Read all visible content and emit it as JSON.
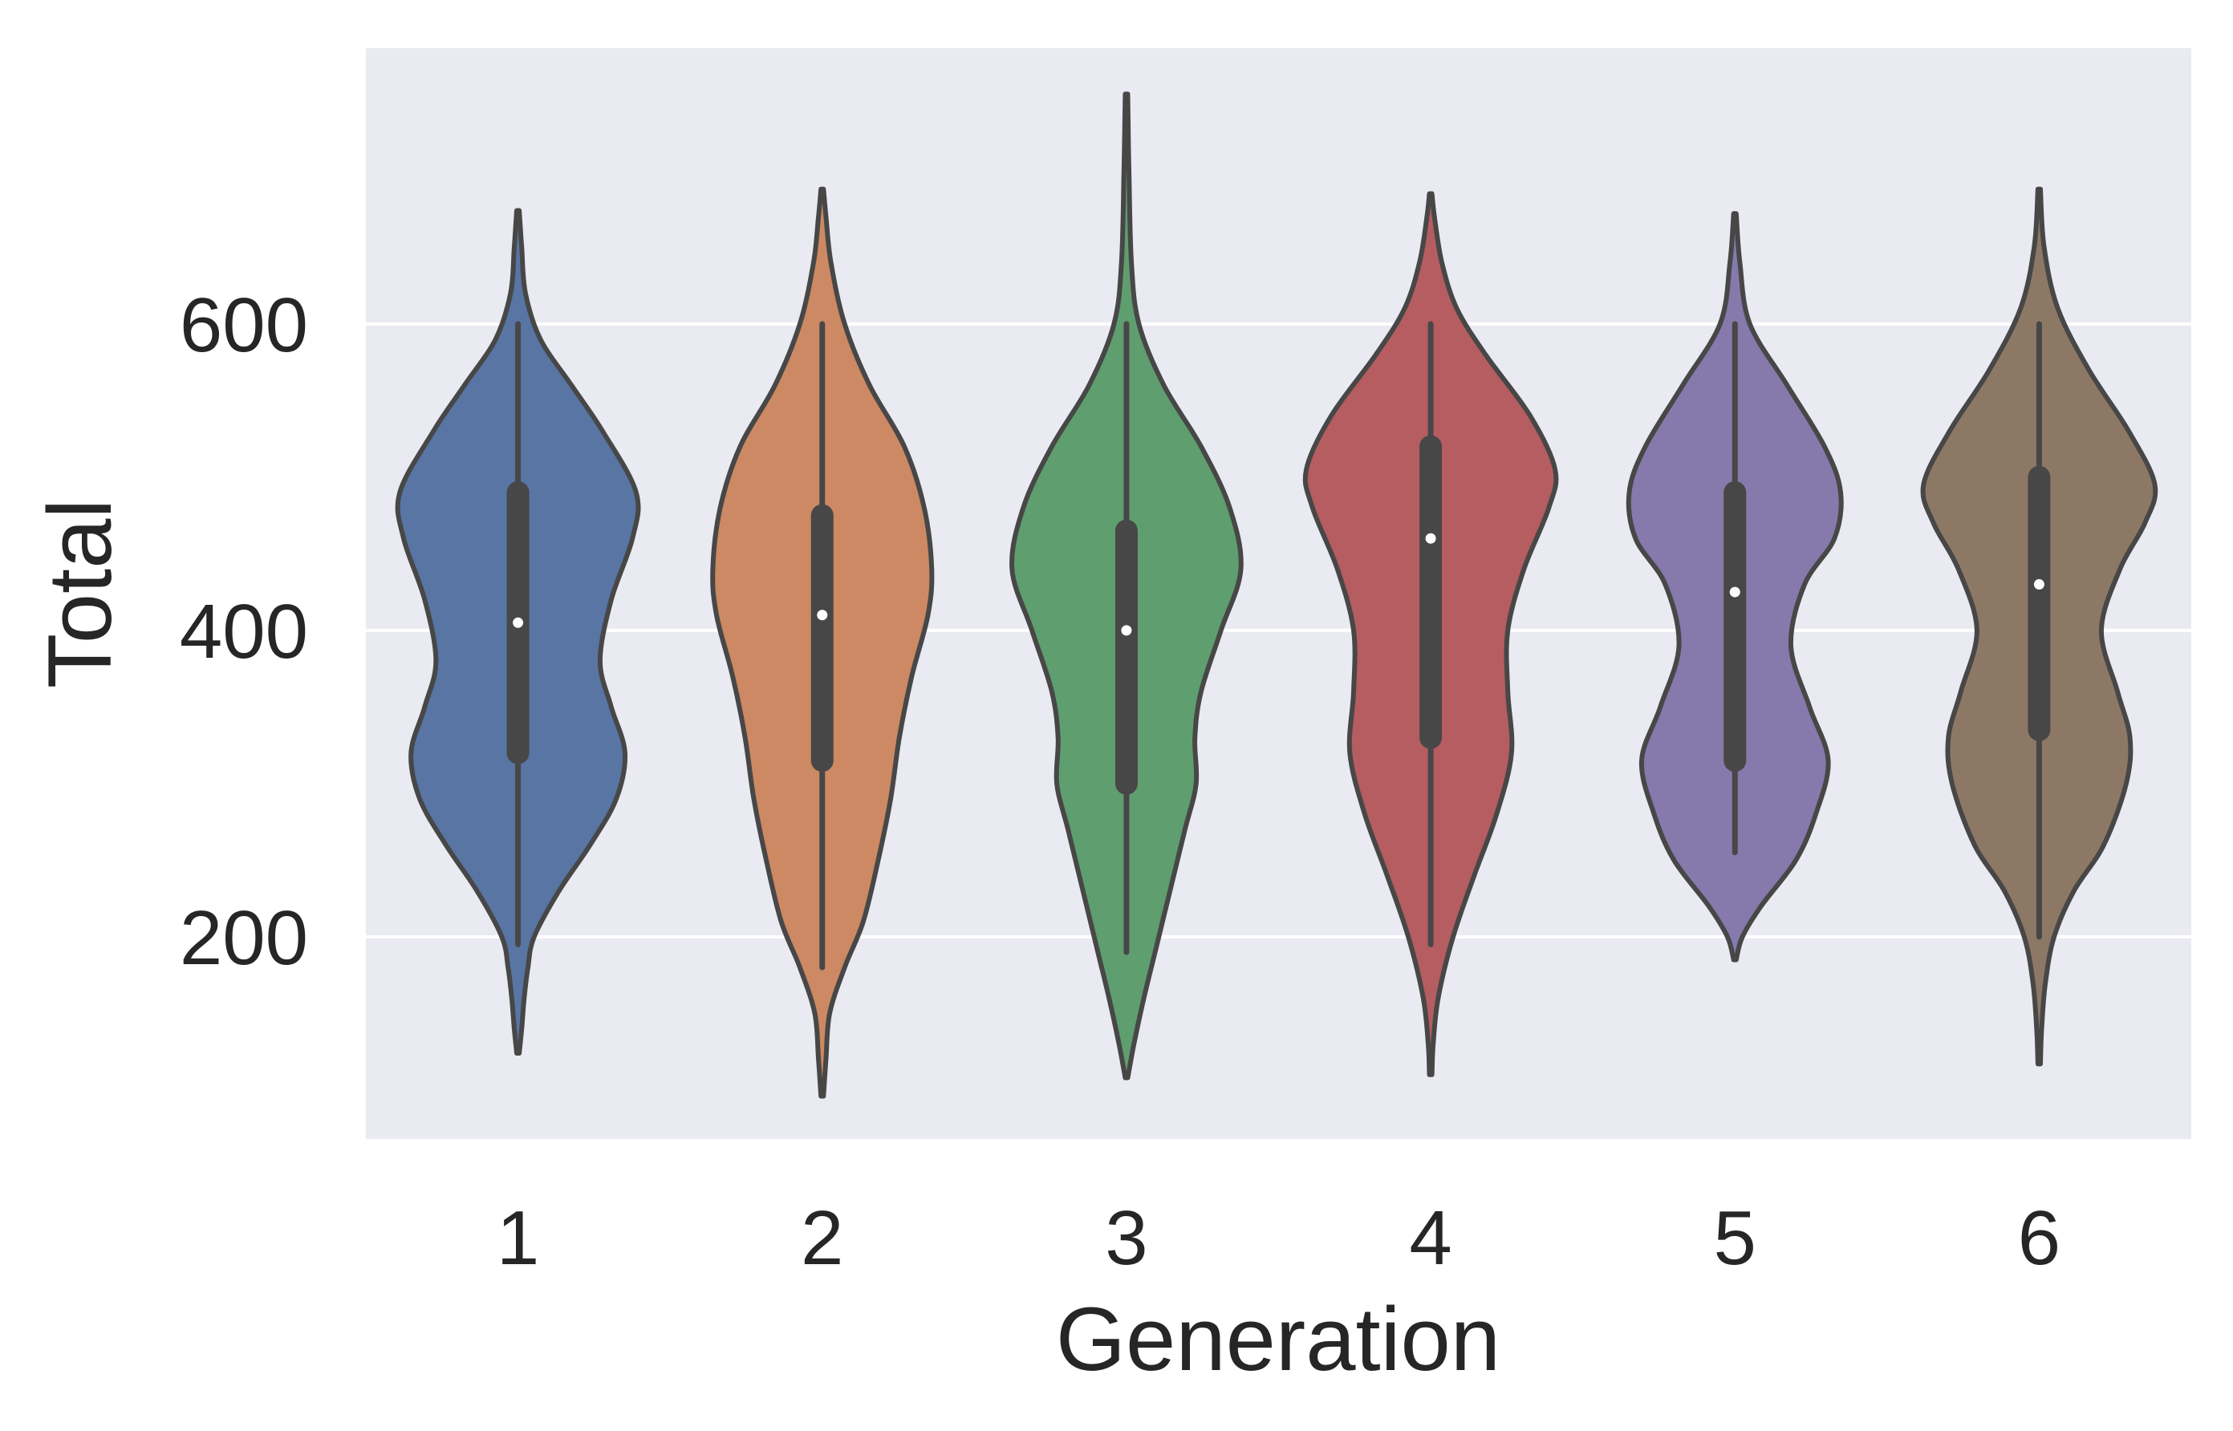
{
  "chart_data": {
    "type": "violin",
    "xlabel": "Generation",
    "ylabel": "Total",
    "categories": [
      "1",
      "2",
      "3",
      "4",
      "5",
      "6"
    ],
    "yticks": [
      200,
      400,
      600
    ],
    "ytick_labels": [
      "200",
      "400",
      "600"
    ],
    "ylim": [
      68,
      780
    ],
    "grid": "horizontal",
    "background": "#eaeaf2",
    "gridline_color": "#ffffff",
    "outline_color": "#474747",
    "colors": [
      "#5875a4",
      "#cc8963",
      "#5f9e6e",
      "#b55d60",
      "#857aab",
      "#8d7866"
    ],
    "violins": [
      {
        "category": "1",
        "min": 195,
        "q1": 320,
        "median": 405,
        "q3": 490,
        "max": 600,
        "kde": [
          [
            124,
            0.01
          ],
          [
            140,
            0.03
          ],
          [
            160,
            0.05
          ],
          [
            180,
            0.08
          ],
          [
            200,
            0.13
          ],
          [
            230,
            0.33
          ],
          [
            260,
            0.58
          ],
          [
            290,
            0.79
          ],
          [
            320,
            0.86
          ],
          [
            350,
            0.75
          ],
          [
            380,
            0.66
          ],
          [
            420,
            0.75
          ],
          [
            460,
            0.92
          ],
          [
            490,
            0.95
          ],
          [
            530,
            0.68
          ],
          [
            560,
            0.43
          ],
          [
            590,
            0.18
          ],
          [
            620,
            0.06
          ],
          [
            650,
            0.03
          ],
          [
            674,
            0.01
          ]
        ]
      },
      {
        "category": "2",
        "min": 180,
        "q1": 315,
        "median": 410,
        "q3": 475,
        "max": 600,
        "kde": [
          [
            96,
            0.01
          ],
          [
            120,
            0.03
          ],
          [
            150,
            0.06
          ],
          [
            180,
            0.18
          ],
          [
            210,
            0.33
          ],
          [
            250,
            0.45
          ],
          [
            290,
            0.55
          ],
          [
            330,
            0.62
          ],
          [
            370,
            0.72
          ],
          [
            410,
            0.85
          ],
          [
            440,
            0.88
          ],
          [
            480,
            0.82
          ],
          [
            520,
            0.66
          ],
          [
            560,
            0.38
          ],
          [
            600,
            0.18
          ],
          [
            640,
            0.07
          ],
          [
            670,
            0.03
          ],
          [
            688,
            0.01
          ]
        ]
      },
      {
        "category": "3",
        "min": 190,
        "q1": 300,
        "median": 400,
        "q3": 465,
        "max": 600,
        "kde": [
          [
            108,
            0.01
          ],
          [
            130,
            0.06
          ],
          [
            160,
            0.14
          ],
          [
            190,
            0.23
          ],
          [
            230,
            0.35
          ],
          [
            270,
            0.47
          ],
          [
            300,
            0.56
          ],
          [
            330,
            0.55
          ],
          [
            360,
            0.6
          ],
          [
            400,
            0.76
          ],
          [
            440,
            0.92
          ],
          [
            480,
            0.83
          ],
          [
            520,
            0.6
          ],
          [
            560,
            0.3
          ],
          [
            600,
            0.1
          ],
          [
            640,
            0.04
          ],
          [
            700,
            0.02
          ],
          [
            750,
            0.01
          ]
        ]
      },
      {
        "category": "4",
        "min": 195,
        "q1": 330,
        "median": 460,
        "q3": 520,
        "max": 600,
        "kde": [
          [
            110,
            0.01
          ],
          [
            130,
            0.02
          ],
          [
            160,
            0.06
          ],
          [
            200,
            0.18
          ],
          [
            240,
            0.35
          ],
          [
            280,
            0.53
          ],
          [
            320,
            0.65
          ],
          [
            360,
            0.62
          ],
          [
            400,
            0.62
          ],
          [
            440,
            0.75
          ],
          [
            480,
            0.95
          ],
          [
            505,
            1.0
          ],
          [
            540,
            0.8
          ],
          [
            580,
            0.44
          ],
          [
            610,
            0.21
          ],
          [
            640,
            0.09
          ],
          [
            670,
            0.03
          ],
          [
            685,
            0.01
          ]
        ]
      },
      {
        "category": "5",
        "min": 255,
        "q1": 315,
        "median": 425,
        "q3": 490,
        "max": 600,
        "kde": [
          [
            185,
            0.01
          ],
          [
            200,
            0.06
          ],
          [
            220,
            0.21
          ],
          [
            250,
            0.49
          ],
          [
            280,
            0.65
          ],
          [
            315,
            0.75
          ],
          [
            350,
            0.6
          ],
          [
            390,
            0.45
          ],
          [
            430,
            0.56
          ],
          [
            460,
            0.8
          ],
          [
            490,
            0.85
          ],
          [
            520,
            0.72
          ],
          [
            560,
            0.42
          ],
          [
            600,
            0.12
          ],
          [
            640,
            0.04
          ],
          [
            672,
            0.01
          ]
        ]
      },
      {
        "category": "6",
        "min": 200,
        "q1": 335,
        "median": 430,
        "q3": 500,
        "max": 600,
        "kde": [
          [
            117,
            0.01
          ],
          [
            140,
            0.02
          ],
          [
            170,
            0.05
          ],
          [
            200,
            0.12
          ],
          [
            230,
            0.28
          ],
          [
            260,
            0.52
          ],
          [
            300,
            0.7
          ],
          [
            330,
            0.73
          ],
          [
            360,
            0.63
          ],
          [
            400,
            0.5
          ],
          [
            440,
            0.65
          ],
          [
            470,
            0.85
          ],
          [
            495,
            0.93
          ],
          [
            530,
            0.72
          ],
          [
            570,
            0.4
          ],
          [
            610,
            0.15
          ],
          [
            650,
            0.04
          ],
          [
            688,
            0.01
          ]
        ]
      }
    ]
  }
}
